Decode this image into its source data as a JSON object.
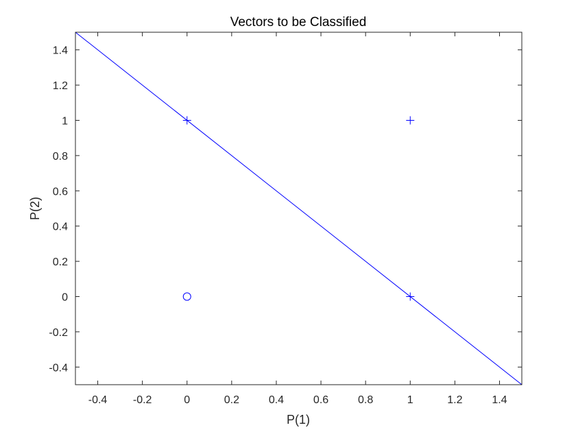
{
  "chart_data": {
    "type": "scatter",
    "title": "Vectors to be Classified",
    "xlabel": "P(1)",
    "ylabel": "P(2)",
    "xlim": [
      -0.5,
      1.5
    ],
    "ylim": [
      -0.5,
      1.5
    ],
    "xticks": [
      -0.4,
      -0.2,
      0,
      0.2,
      0.4,
      0.6,
      0.8,
      1,
      1.2,
      1.4
    ],
    "yticks": [
      -0.4,
      -0.2,
      0,
      0.2,
      0.4,
      0.6,
      0.8,
      1,
      1.2,
      1.4
    ],
    "xtick_labels": [
      "-0.4",
      "-0.2",
      "0",
      "0.2",
      "0.4",
      "0.6",
      "0.8",
      "1",
      "1.2",
      "1.4"
    ],
    "ytick_labels": [
      "-0.4",
      "-0.2",
      "0",
      "0.2",
      "0.4",
      "0.6",
      "0.8",
      "1",
      "1.2",
      "1.4"
    ],
    "grid": false,
    "series": [
      {
        "marker": "plus",
        "color": "#0000ff",
        "points": [
          {
            "x": 0,
            "y": 1
          },
          {
            "x": 1,
            "y": 1
          },
          {
            "x": 1,
            "y": 0
          }
        ]
      },
      {
        "marker": "circle",
        "color": "#0000ff",
        "points": [
          {
            "x": 0,
            "y": 0
          }
        ]
      }
    ],
    "lines": [
      {
        "color": "#0000ff",
        "points": [
          {
            "x": -0.5,
            "y": 1.5
          },
          {
            "x": 1.5,
            "y": -0.5
          }
        ]
      }
    ],
    "colors": {
      "axis": "#262626",
      "background": "#ffffff",
      "marker": "#0000ff",
      "line": "#0000ff"
    }
  }
}
